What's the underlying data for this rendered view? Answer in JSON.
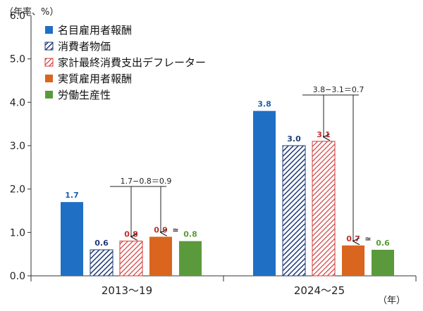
{
  "chart_data": {
    "type": "bar",
    "y_unit_label": "（年率、%）",
    "x_unit_label": "（年）",
    "categories": [
      "2013～19",
      "2024～25"
    ],
    "ylim": [
      0,
      6
    ],
    "yticks": [
      "0.0",
      "1.0",
      "2.0",
      "3.0",
      "4.0",
      "5.0",
      "6.0"
    ],
    "legend_position": "top-left",
    "series": [
      {
        "name": "名目雇用者報酬",
        "values": [
          1.7,
          3.8
        ],
        "labels": [
          "1.7",
          "3.8"
        ],
        "color": "#1f6fc5",
        "label_color": "#1f5fa8",
        "pattern": "solid"
      },
      {
        "name": "消費者物価",
        "values": [
          0.6,
          3.0
        ],
        "labels": [
          "0.6",
          "3.0"
        ],
        "color": "#1f3a78",
        "label_color": "#1f3a78",
        "pattern": "hatch-navy"
      },
      {
        "name": "家計最終消費支出デフレーター",
        "values": [
          0.8,
          3.1
        ],
        "labels": [
          "0.8",
          "3.1"
        ],
        "color": "#d23a3a",
        "label_color": "#c0302a",
        "pattern": "hatch-red"
      },
      {
        "name": "実質雇用者報酬",
        "values": [
          0.9,
          0.7
        ],
        "labels": [
          "0.9",
          "0.7"
        ],
        "color": "#d9651e",
        "label_color": "#c0302a",
        "pattern": "solid"
      },
      {
        "name": "労働生産性",
        "values": [
          0.8,
          0.6
        ],
        "labels": [
          "0.8",
          "0.6"
        ],
        "color": "#5a9a3c",
        "label_color": "#5a9a3c",
        "pattern": "solid"
      }
    ],
    "annotations": [
      {
        "text": "1.7−0.8＝0.9",
        "group": 0
      },
      {
        "text": "3.8−3.1＝0.7",
        "group": 1
      }
    ],
    "approx_symbols": [
      "≃",
      "≃"
    ]
  }
}
